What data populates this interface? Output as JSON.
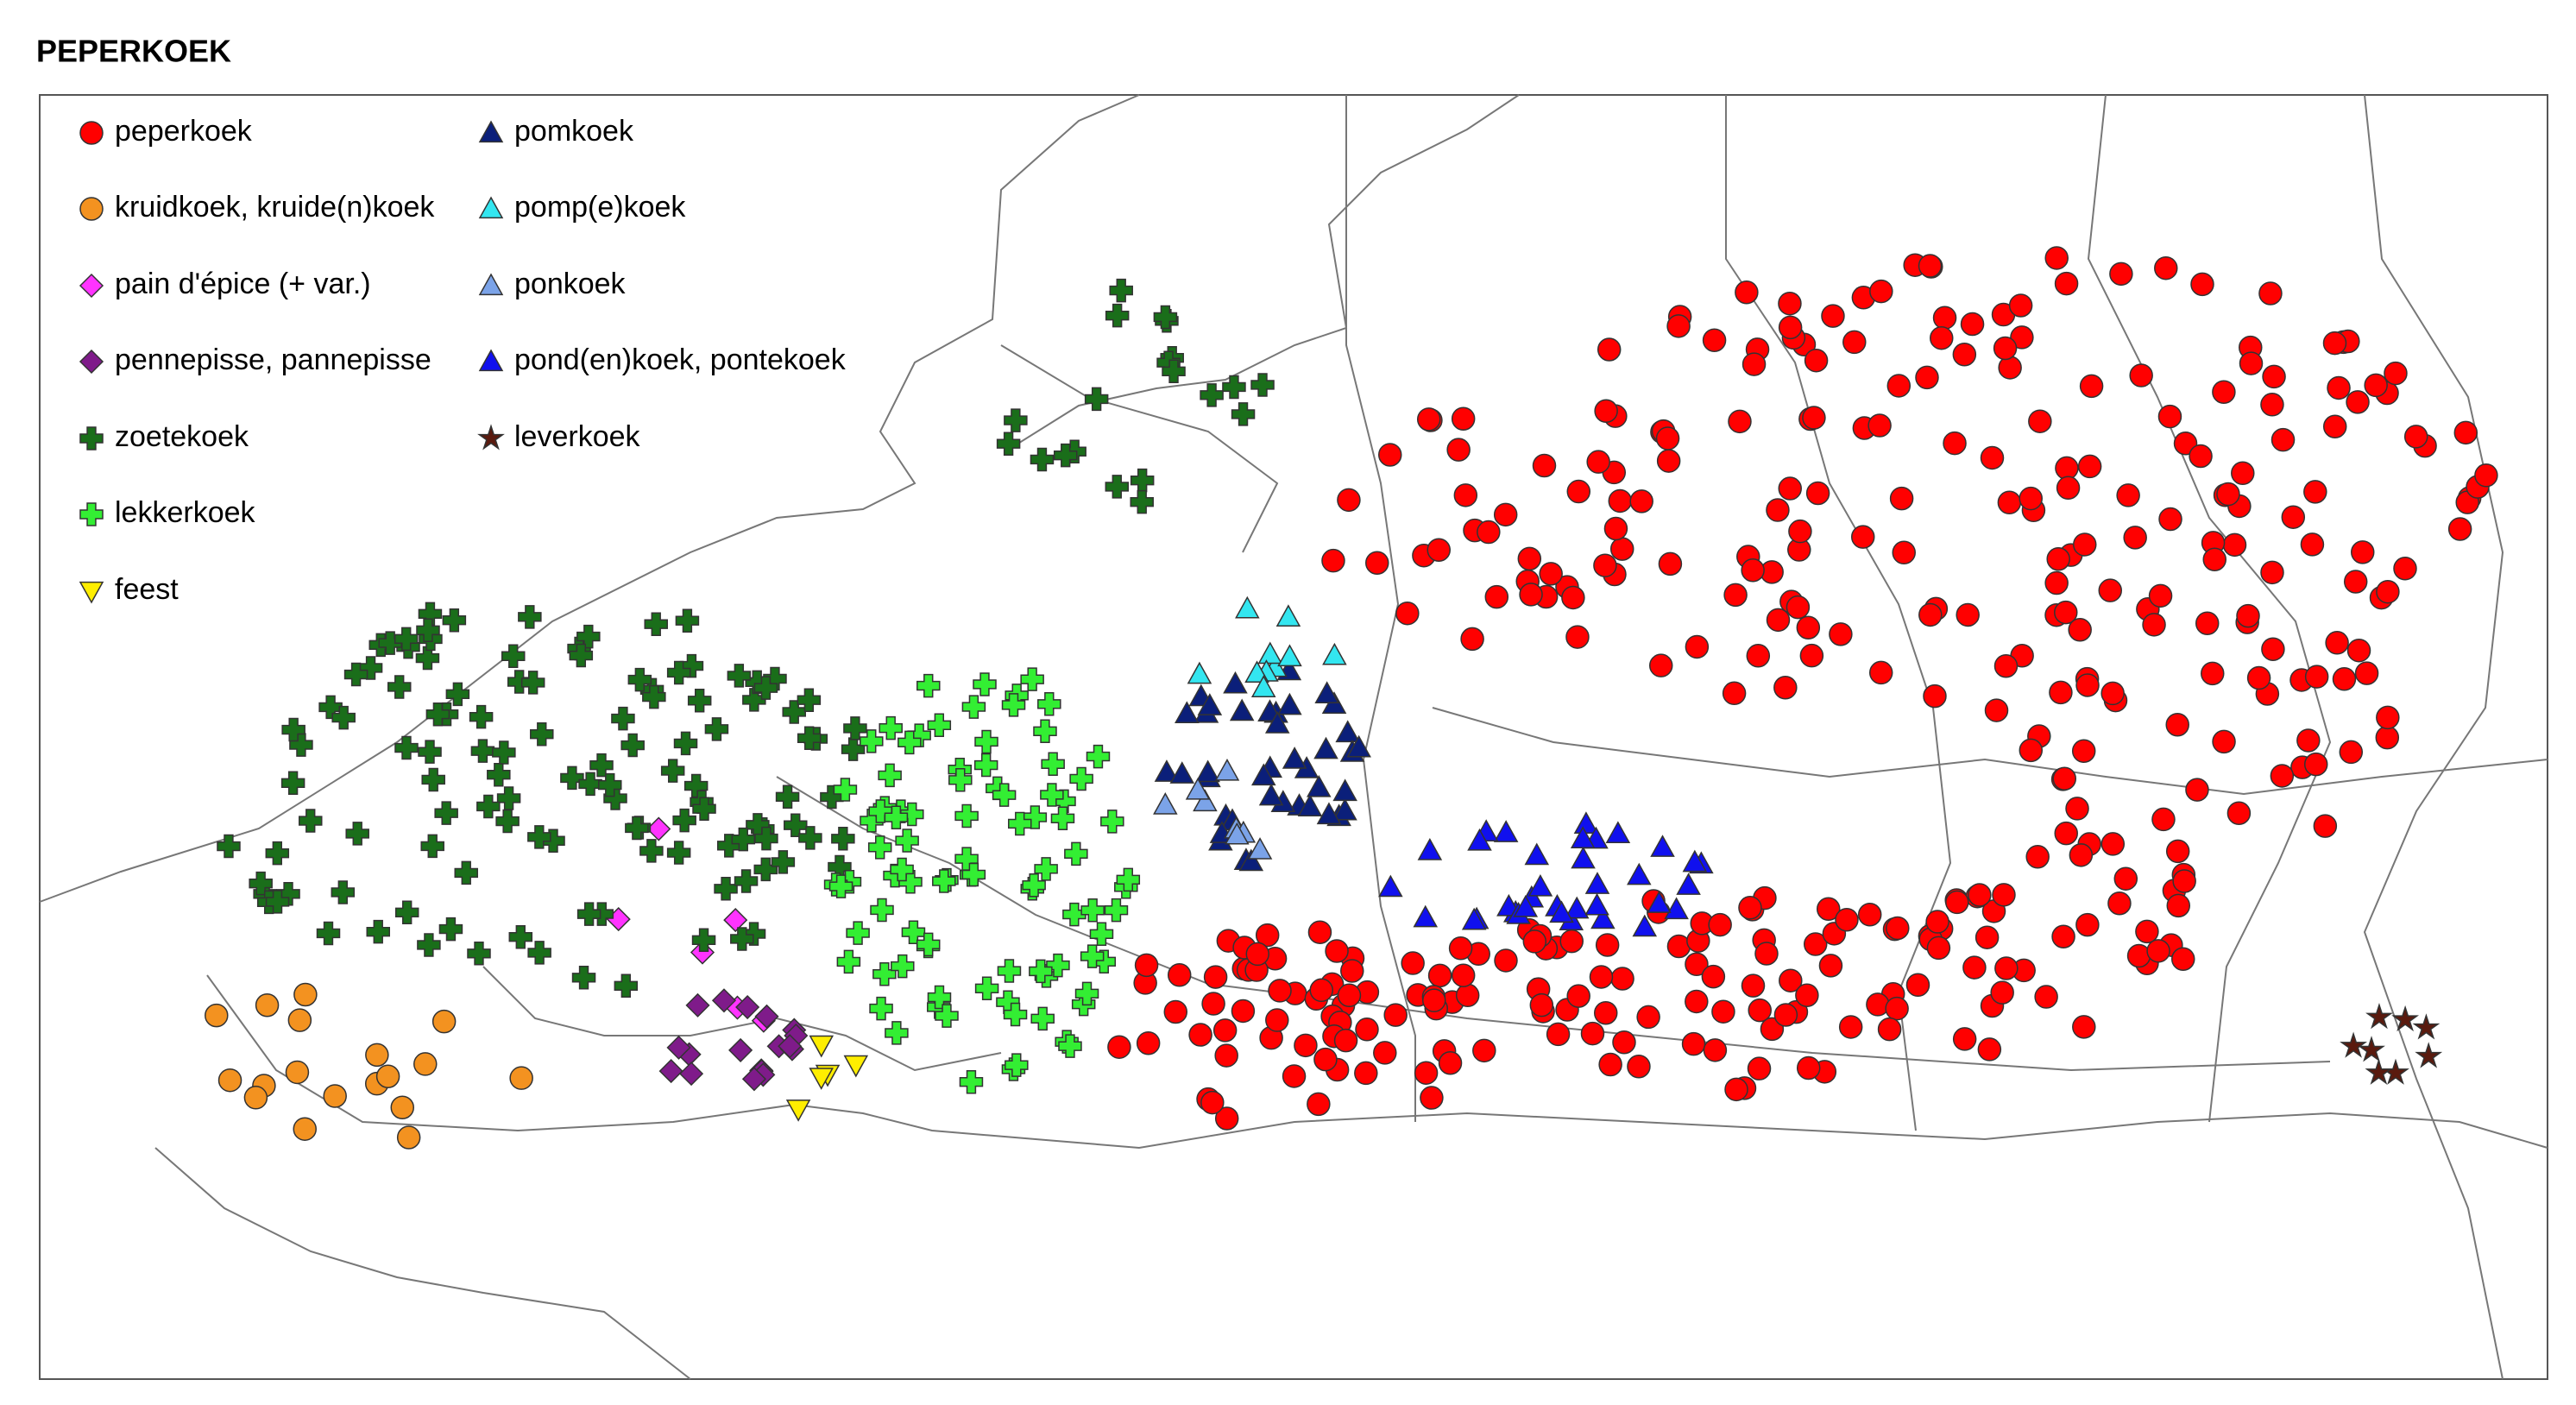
{
  "title": "PEPERKOEK",
  "legend": [
    {
      "label": "peperkoek",
      "shape": "circle",
      "color": "#ff0000"
    },
    {
      "label": "kruidkoek, kruide(n)koek",
      "shape": "circle",
      "color": "#f39220"
    },
    {
      "label": "pain d'épice (+ var.)",
      "shape": "diamond",
      "color": "#ff33ff"
    },
    {
      "label": "pennepisse, pannepisse",
      "shape": "diamond",
      "color": "#7f1b8a"
    },
    {
      "label": "zoetekoek",
      "shape": "plus",
      "color": "#1a6e1a"
    },
    {
      "label": "lekkerkoek",
      "shape": "plus",
      "color": "#33ee33"
    },
    {
      "label": "feest",
      "shape": "triangle-down",
      "color": "#ffee00"
    },
    {
      "label": "pomkoek",
      "shape": "triangle",
      "color": "#0b1f7a"
    },
    {
      "label": "pomp(e)koek",
      "shape": "triangle",
      "color": "#33e6f0"
    },
    {
      "label": "ponkoek",
      "shape": "triangle",
      "color": "#7ba3e8"
    },
    {
      "label": "pond(en)koek, pontekoek",
      "shape": "triangle",
      "color": "#1010ee"
    },
    {
      "label": "leverkoek",
      "shape": "star",
      "color": "#5a1a0e"
    }
  ]
}
